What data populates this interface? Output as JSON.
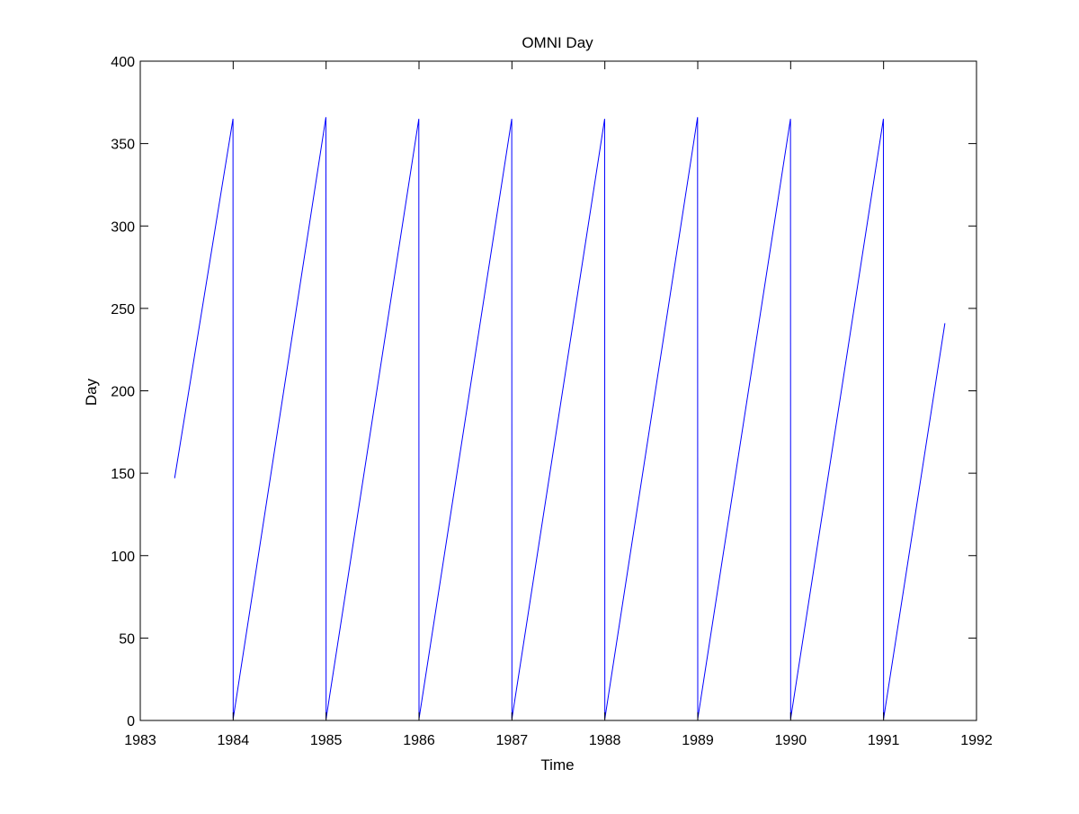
{
  "chart_data": {
    "type": "line",
    "title": "OMNI Day",
    "xlabel": "Time",
    "ylabel": "Day",
    "xlim": [
      1983,
      1992
    ],
    "ylim": [
      0,
      400
    ],
    "xticks": [
      1983,
      1984,
      1985,
      1986,
      1987,
      1988,
      1989,
      1990,
      1991,
      1992
    ],
    "yticks": [
      0,
      50,
      100,
      150,
      200,
      250,
      300,
      350,
      400
    ],
    "grid": false,
    "legend": "none",
    "series_color": "#0000ff",
    "series": [
      {
        "x": [
          1983.37,
          1983.998,
          1984.0,
          1984.998,
          1985.0,
          1985.998,
          1986.0,
          1986.998,
          1987.0,
          1987.998,
          1988.0,
          1988.998,
          1989.0,
          1989.998,
          1990.0,
          1990.998,
          1991.0,
          1991.66
        ],
        "y": [
          147,
          365,
          1,
          366,
          1,
          365,
          1,
          365,
          1,
          365,
          1,
          366,
          1,
          365,
          1,
          365,
          1,
          241
        ]
      }
    ]
  }
}
